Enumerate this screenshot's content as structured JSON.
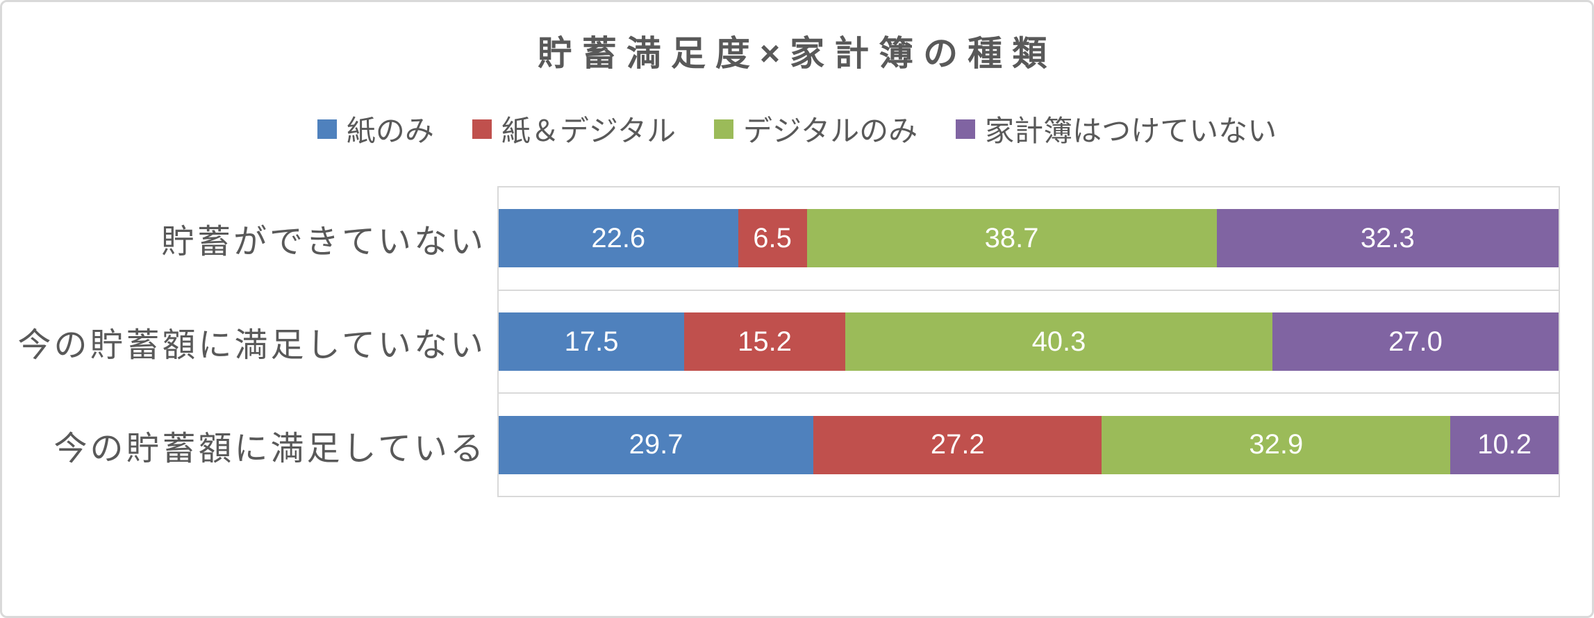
{
  "title": "貯蓄満足度×家計簿の種類",
  "colors": {
    "text": "#595959",
    "grid": "#D9D9D9",
    "background": "#FFFFFF",
    "value_label": "#FFFFFF"
  },
  "legend": {
    "position": "top",
    "items": [
      {
        "label": "紙のみ",
        "color": "#4F81BD"
      },
      {
        "label": "紙＆デジタル",
        "color": "#C0504D"
      },
      {
        "label": "デジタルのみ",
        "color": "#9BBB59"
      },
      {
        "label": "家計簿はつけていない",
        "color": "#8064A2"
      }
    ]
  },
  "chart_data": {
    "type": "bar",
    "subtype": "stacked-horizontal-100percent",
    "title": "貯蓄満足度×家計簿の種類",
    "unit": "%",
    "xlim": [
      0,
      100
    ],
    "axis_ticks_visible": false,
    "grid": "category band separator lines only",
    "legend_position": "top",
    "value_labels": "inside center, white, one decimal",
    "categories": [
      "貯蓄ができていない",
      "今の貯蓄額に満足していない",
      "今の貯蓄額に満足している"
    ],
    "series": [
      {
        "name": "紙のみ",
        "color": "#4F81BD",
        "values": [
          22.6,
          17.5,
          29.7
        ],
        "labels": [
          "22.6",
          "17.5",
          "29.7"
        ]
      },
      {
        "name": "紙＆デジタル",
        "color": "#C0504D",
        "values": [
          6.5,
          15.2,
          27.2
        ],
        "labels": [
          "6.5",
          "15.2",
          "27.2"
        ]
      },
      {
        "name": "デジタルのみ",
        "color": "#9BBB59",
        "values": [
          38.7,
          40.3,
          32.9
        ],
        "labels": [
          "38.7",
          "40.3",
          "32.9"
        ]
      },
      {
        "name": "家計簿はつけていない",
        "color": "#8064A2",
        "values": [
          32.3,
          27.0,
          10.2
        ],
        "labels": [
          "32.3",
          "27.0",
          "10.2"
        ]
      }
    ]
  }
}
